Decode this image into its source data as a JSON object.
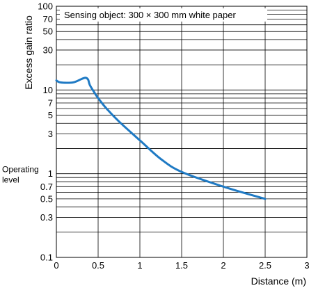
{
  "chart_data": {
    "type": "line",
    "ylabel": "Excess gain ratio",
    "xlabel": "Distance (m)",
    "annotation": "Sensing object: 300 × 300 mm white paper",
    "operating_level_label": [
      "Operating",
      "level"
    ],
    "operating_level_value": 1,
    "xlim": [
      0,
      3
    ],
    "ylim": [
      0.1,
      100
    ],
    "y_scale": "log",
    "grid": true,
    "x_ticks": [
      {
        "value": 0,
        "label": "0"
      },
      {
        "value": 0.5,
        "label": "0.5"
      },
      {
        "value": 1,
        "label": "1"
      },
      {
        "value": 1.5,
        "label": "1.5"
      },
      {
        "value": 2,
        "label": "2"
      },
      {
        "value": 2.5,
        "label": "2.5"
      },
      {
        "value": 3,
        "label": "3"
      }
    ],
    "y_ticks": [
      {
        "value": 0.1,
        "label": "0.1"
      },
      {
        "value": 0.3,
        "label": "0.3"
      },
      {
        "value": 0.5,
        "label": "0.5"
      },
      {
        "value": 0.7,
        "label": "0.7"
      },
      {
        "value": 1,
        "label": "1"
      },
      {
        "value": 3,
        "label": "3"
      },
      {
        "value": 5,
        "label": "5"
      },
      {
        "value": 7,
        "label": "7"
      },
      {
        "value": 10,
        "label": "10"
      },
      {
        "value": 30,
        "label": "30"
      },
      {
        "value": 50,
        "label": "50"
      },
      {
        "value": 70,
        "label": "70"
      },
      {
        "value": 100,
        "label": "100"
      }
    ],
    "y_gridlines": [
      0.1,
      0.2,
      0.3,
      0.4,
      0.5,
      0.6,
      0.7,
      0.8,
      0.9,
      1,
      2,
      3,
      4,
      5,
      6,
      7,
      8,
      9,
      10,
      20,
      30,
      40,
      50,
      60,
      70,
      80,
      90,
      100
    ],
    "series": [
      {
        "color": "#1f7ac4",
        "x": [
          0,
          0.05,
          0.2,
          0.3,
          0.35,
          0.38,
          0.4,
          0.45,
          0.5,
          0.6,
          0.75,
          1.0,
          1.25,
          1.5,
          2.0,
          2.5
        ],
        "y": [
          13,
          12.3,
          12.3,
          13.5,
          14,
          13.3,
          11.5,
          9.5,
          8.0,
          6.0,
          4.2,
          2.5,
          1.5,
          1.05,
          0.7,
          0.5
        ]
      }
    ]
  }
}
